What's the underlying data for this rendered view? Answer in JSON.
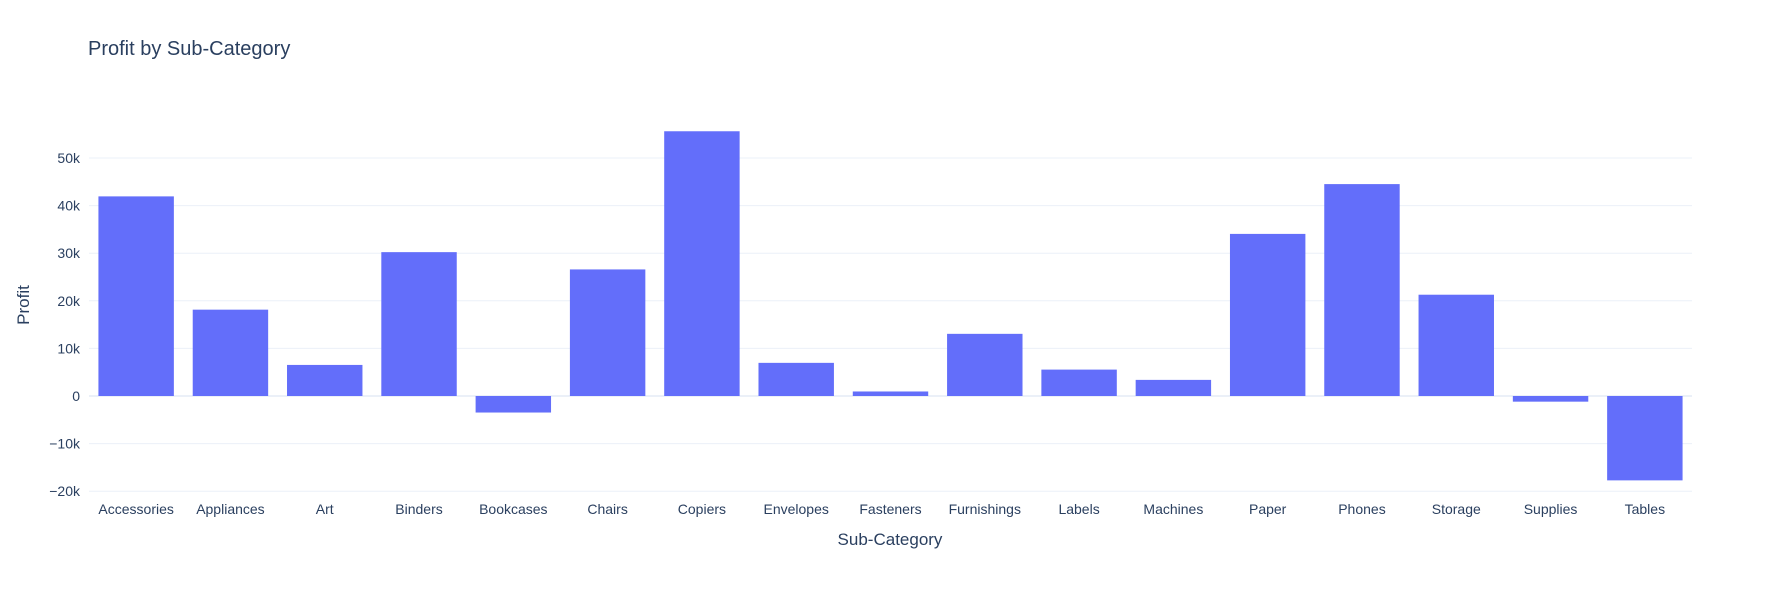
{
  "chart_data": {
    "type": "bar",
    "title": "Profit by Sub-Category",
    "xlabel": "Sub-Category",
    "ylabel": "Profit",
    "categories": [
      "Accessories",
      "Appliances",
      "Art",
      "Binders",
      "Bookcases",
      "Chairs",
      "Copiers",
      "Envelopes",
      "Fasteners",
      "Furnishings",
      "Labels",
      "Machines",
      "Paper",
      "Phones",
      "Storage",
      "Supplies",
      "Tables"
    ],
    "series": [
      {
        "values": [
          41937,
          18138,
          6528,
          30222,
          -3473,
          26590,
          55618,
          6964,
          950,
          13059,
          5546,
          3385,
          34054,
          44516,
          21279,
          -1189,
          -17725
        ]
      }
    ],
    "ylim": [
      -20000,
      58000
    ],
    "yticks": [
      -20000,
      -10000,
      0,
      10000,
      20000,
      30000,
      40000,
      50000
    ],
    "ytick_labels": [
      "−20k",
      "−10k",
      "0",
      "10k",
      "20k",
      "30k",
      "40k",
      "50k"
    ],
    "grid": true,
    "bar_color": "#636efa",
    "gridline_color": "#ebf0f8",
    "text_color": "#2a3f5f"
  }
}
